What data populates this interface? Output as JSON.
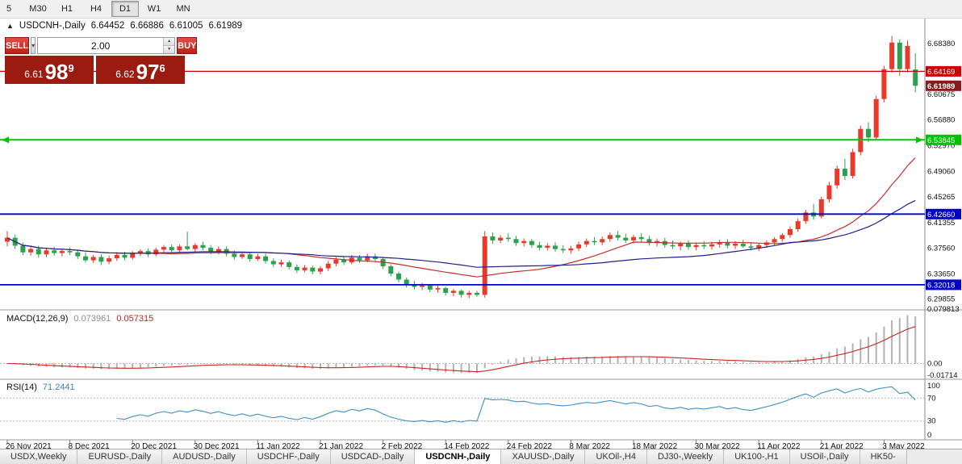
{
  "toolbar": {
    "timeframes": [
      "5",
      "M30",
      "H1",
      "H4",
      "D1",
      "W1",
      "MN"
    ],
    "active": "D1"
  },
  "icons": {
    "panel_toggle": "▲",
    "dropdown": "▾",
    "spin_up": "▴",
    "spin_down": "▾"
  },
  "chart_title": {
    "symbol": "USDCNH-,Daily",
    "open": "6.64452",
    "high": "6.66886",
    "low": "6.61005",
    "close": "6.61989"
  },
  "trade_panel": {
    "sell_label": "SELL",
    "buy_label": "BUY",
    "volume": "2.00",
    "sell_price": {
      "head": "6.61",
      "pips": "98",
      "frac": "9"
    },
    "buy_price": {
      "head": "6.62",
      "pips": "97",
      "frac": "6"
    }
  },
  "tabs": {
    "items": [
      "USDX,Weekly",
      "EURUSD-,Daily",
      "AUDUSD-,Daily",
      "USDCHF-,Daily",
      "USDCAD-,Daily",
      "USDCNH-,Daily",
      "XAUUSD-,Daily",
      "UKOil-,H4",
      "DJ30-,Weekly",
      "UK100-,H1",
      "USOil-,Daily",
      "HK50-"
    ],
    "active": "USDCNH-,Daily"
  },
  "chart_data": {
    "type": "candlestick",
    "symbol": "USDCNH-",
    "timeframe": "Daily",
    "up_color": "#e8392b",
    "down_color": "#2aa14d",
    "price_range": {
      "top": 6.72,
      "bottom": 6.286
    },
    "price_ticks": [
      "6.68380",
      "6.60675",
      "6.56880",
      "6.52970",
      "6.49060",
      "6.45265",
      "6.41355",
      "6.37560",
      "6.33650",
      "6.29855"
    ],
    "price_lines": [
      {
        "name": "resistance-line",
        "price": 6.64169,
        "label": "6.64169",
        "color": "#cc0000",
        "width": 1.2,
        "end_arrows": false
      },
      {
        "name": "support-line-green",
        "price": 6.53845,
        "label": "6.53845",
        "color": "#00c400",
        "width": 2,
        "end_arrows": true
      },
      {
        "name": "support-line-blue-upper",
        "price": 6.4266,
        "label": "6.42660",
        "color": "#0000c8",
        "width": 1.8,
        "end_arrows": false
      },
      {
        "name": "support-line-blue-lower",
        "price": 6.32018,
        "label": "6.32018",
        "color": "#0000c8",
        "width": 1.8,
        "end_arrows": false
      }
    ],
    "current_price": {
      "price": 6.61989,
      "label": "6.61989",
      "badge_color": "#8b1a1a"
    },
    "x_labels": [
      {
        "index": 0,
        "label": "26 Nov 2021"
      },
      {
        "index": 8,
        "label": "8 Dec 2021"
      },
      {
        "index": 16,
        "label": "20 Dec 2021"
      },
      {
        "index": 24,
        "label": "30 Dec 2021"
      },
      {
        "index": 32,
        "label": "11 Jan 2022"
      },
      {
        "index": 40,
        "label": "21 Jan 2022"
      },
      {
        "index": 48,
        "label": "2 Feb 2022"
      },
      {
        "index": 56,
        "label": "14 Feb 2022"
      },
      {
        "index": 64,
        "label": "24 Feb 2022"
      },
      {
        "index": 72,
        "label": "8 Mar 2022"
      },
      {
        "index": 80,
        "label": "18 Mar 2022"
      },
      {
        "index": 88,
        "label": "30 Mar 2022"
      },
      {
        "index": 96,
        "label": "11 Apr 2022"
      },
      {
        "index": 104,
        "label": "21 Apr 2022"
      },
      {
        "index": 112,
        "label": "3 May 2022"
      }
    ],
    "overlays": [
      {
        "name": "ma-fast",
        "type": "sma",
        "period": 20,
        "color": "#c13030"
      },
      {
        "name": "ma-slow",
        "type": "sma",
        "period": 40,
        "color": "#20208a"
      }
    ],
    "indicators": [
      {
        "name": "macd",
        "label": "MACD(12,26,9)",
        "value_main": "0.073961",
        "value_signal": "0.057315",
        "fast": 12,
        "slow": 26,
        "signal": 9,
        "histogram_color": "#b3b3b3",
        "signal_color": "#cc2222",
        "axis_labels": [
          "0.079813",
          "0.00",
          "-0.01714"
        ]
      },
      {
        "name": "rsi",
        "label": "RSI(14)",
        "value": "71.2441",
        "period": 14,
        "color": "#3f8fc4",
        "levels": [
          100,
          70,
          30,
          0
        ]
      }
    ],
    "candles": [
      [
        6.385,
        6.401,
        6.378,
        6.391
      ],
      [
        6.391,
        6.396,
        6.374,
        6.379
      ],
      [
        6.379,
        6.384,
        6.365,
        6.369
      ],
      [
        6.369,
        6.378,
        6.364,
        6.374
      ],
      [
        6.374,
        6.379,
        6.361,
        6.366
      ],
      [
        6.366,
        6.376,
        6.362,
        6.372
      ],
      [
        6.372,
        6.377,
        6.364,
        6.368
      ],
      [
        6.368,
        6.375,
        6.363,
        6.371
      ],
      [
        6.371,
        6.376,
        6.365,
        6.369
      ],
      [
        6.369,
        6.373,
        6.359,
        6.363
      ],
      [
        6.363,
        6.369,
        6.354,
        6.357
      ],
      [
        6.357,
        6.365,
        6.353,
        6.362
      ],
      [
        6.362,
        6.366,
        6.35,
        6.355
      ],
      [
        6.355,
        6.364,
        6.351,
        6.36
      ],
      [
        6.36,
        6.369,
        6.356,
        6.365
      ],
      [
        6.365,
        6.37,
        6.357,
        6.361
      ],
      [
        6.361,
        6.371,
        6.358,
        6.367
      ],
      [
        6.367,
        6.374,
        6.363,
        6.371
      ],
      [
        6.371,
        6.375,
        6.362,
        6.366
      ],
      [
        6.366,
        6.376,
        6.363,
        6.373
      ],
      [
        6.373,
        6.38,
        6.369,
        6.377
      ],
      [
        6.377,
        6.381,
        6.368,
        6.372
      ],
      [
        6.372,
        6.381,
        6.369,
        6.378
      ],
      [
        6.378,
        6.4,
        6.372,
        6.374
      ],
      [
        6.374,
        6.383,
        6.37,
        6.38
      ],
      [
        6.38,
        6.385,
        6.372,
        6.376
      ],
      [
        6.376,
        6.38,
        6.366,
        6.37
      ],
      [
        6.37,
        6.378,
        6.366,
        6.374
      ],
      [
        6.374,
        6.378,
        6.363,
        6.367
      ],
      [
        6.367,
        6.372,
        6.358,
        6.362
      ],
      [
        6.362,
        6.37,
        6.359,
        6.366
      ],
      [
        6.366,
        6.37,
        6.355,
        6.359
      ],
      [
        6.359,
        6.367,
        6.356,
        6.363
      ],
      [
        6.363,
        6.367,
        6.352,
        6.356
      ],
      [
        6.356,
        6.36,
        6.347,
        6.351
      ],
      [
        6.351,
        6.358,
        6.347,
        6.354
      ],
      [
        6.354,
        6.357,
        6.343,
        6.347
      ],
      [
        6.347,
        6.351,
        6.338,
        6.342
      ],
      [
        6.342,
        6.35,
        6.339,
        6.346
      ],
      [
        6.346,
        6.349,
        6.336,
        6.34
      ],
      [
        6.34,
        6.348,
        6.336,
        6.345
      ],
      [
        6.345,
        6.356,
        6.341,
        6.352
      ],
      [
        6.352,
        6.362,
        6.348,
        6.358
      ],
      [
        6.358,
        6.362,
        6.35,
        6.354
      ],
      [
        6.354,
        6.365,
        6.351,
        6.361
      ],
      [
        6.361,
        6.365,
        6.353,
        6.357
      ],
      [
        6.357,
        6.367,
        6.354,
        6.363
      ],
      [
        6.363,
        6.367,
        6.355,
        6.359
      ],
      [
        6.359,
        6.362,
        6.344,
        6.348
      ],
      [
        6.348,
        6.351,
        6.333,
        6.337
      ],
      [
        6.337,
        6.34,
        6.324,
        6.328
      ],
      [
        6.328,
        6.331,
        6.316,
        6.32
      ],
      [
        6.32,
        6.326,
        6.313,
        6.317
      ],
      [
        6.317,
        6.323,
        6.312,
        6.319
      ],
      [
        6.319,
        6.321,
        6.309,
        6.313
      ],
      [
        6.313,
        6.319,
        6.308,
        6.315
      ],
      [
        6.315,
        6.317,
        6.304,
        6.308
      ],
      [
        6.308,
        6.314,
        6.303,
        6.311
      ],
      [
        6.311,
        6.313,
        6.301,
        6.305
      ],
      [
        6.305,
        6.311,
        6.3,
        6.308
      ],
      [
        6.308,
        6.311,
        6.302,
        6.305
      ],
      [
        6.305,
        6.401,
        6.301,
        6.393
      ],
      [
        6.393,
        6.399,
        6.382,
        6.387
      ],
      [
        6.387,
        6.395,
        6.383,
        6.391
      ],
      [
        6.391,
        6.398,
        6.385,
        6.389
      ],
      [
        6.389,
        6.394,
        6.379,
        6.383
      ],
      [
        6.383,
        6.39,
        6.378,
        6.386
      ],
      [
        6.386,
        6.389,
        6.376,
        6.38
      ],
      [
        6.38,
        6.385,
        6.372,
        6.376
      ],
      [
        6.376,
        6.383,
        6.372,
        6.379
      ],
      [
        6.379,
        6.384,
        6.37,
        6.374
      ],
      [
        6.374,
        6.38,
        6.368,
        6.372
      ],
      [
        6.372,
        6.379,
        6.367,
        6.375
      ],
      [
        6.375,
        6.385,
        6.371,
        6.381
      ],
      [
        6.381,
        6.39,
        6.377,
        6.386
      ],
      [
        6.386,
        6.392,
        6.38,
        6.384
      ],
      [
        6.384,
        6.393,
        6.38,
        6.389
      ],
      [
        6.389,
        6.399,
        6.385,
        6.395
      ],
      [
        6.395,
        6.401,
        6.387,
        6.391
      ],
      [
        6.391,
        6.397,
        6.383,
        6.387
      ],
      [
        6.387,
        6.395,
        6.382,
        6.392
      ],
      [
        6.392,
        6.398,
        6.385,
        6.389
      ],
      [
        6.389,
        6.394,
        6.379,
        6.383
      ],
      [
        6.383,
        6.39,
        6.378,
        6.386
      ],
      [
        6.386,
        6.391,
        6.376,
        6.38
      ],
      [
        6.38,
        6.387,
        6.374,
        6.378
      ],
      [
        6.378,
        6.385,
        6.372,
        6.382
      ],
      [
        6.382,
        6.387,
        6.373,
        6.377
      ],
      [
        6.377,
        6.384,
        6.372,
        6.38
      ],
      [
        6.38,
        6.386,
        6.374,
        6.378
      ],
      [
        6.378,
        6.385,
        6.373,
        6.381
      ],
      [
        6.381,
        6.388,
        6.376,
        6.384
      ],
      [
        6.384,
        6.389,
        6.375,
        6.379
      ],
      [
        6.379,
        6.386,
        6.374,
        6.382
      ],
      [
        6.382,
        6.388,
        6.376,
        6.378
      ],
      [
        6.378,
        6.384,
        6.372,
        6.376
      ],
      [
        6.376,
        6.383,
        6.371,
        6.38
      ],
      [
        6.38,
        6.387,
        6.376,
        6.384
      ],
      [
        6.384,
        6.392,
        6.38,
        6.389
      ],
      [
        6.389,
        6.398,
        6.385,
        6.395
      ],
      [
        6.395,
        6.408,
        6.391,
        6.404
      ],
      [
        6.404,
        6.42,
        6.4,
        6.416
      ],
      [
        6.416,
        6.433,
        6.412,
        6.429
      ],
      [
        6.429,
        6.442,
        6.418,
        6.423
      ],
      [
        6.423,
        6.453,
        6.42,
        6.449
      ],
      [
        6.449,
        6.475,
        6.444,
        6.47
      ],
      [
        6.47,
        6.5,
        6.465,
        6.495
      ],
      [
        6.495,
        6.51,
        6.478,
        6.484
      ],
      [
        6.484,
        6.525,
        6.48,
        6.52
      ],
      [
        6.52,
        6.56,
        6.515,
        6.555
      ],
      [
        6.555,
        6.565,
        6.535,
        6.542
      ],
      [
        6.542,
        6.605,
        6.538,
        6.6
      ],
      [
        6.6,
        6.65,
        6.595,
        6.645
      ],
      [
        6.645,
        6.695,
        6.64,
        6.685
      ],
      [
        6.685,
        6.69,
        6.635,
        6.645
      ],
      [
        6.645,
        6.688,
        6.64,
        6.68
      ],
      [
        6.6445,
        6.6689,
        6.6101,
        6.6199
      ]
    ]
  }
}
